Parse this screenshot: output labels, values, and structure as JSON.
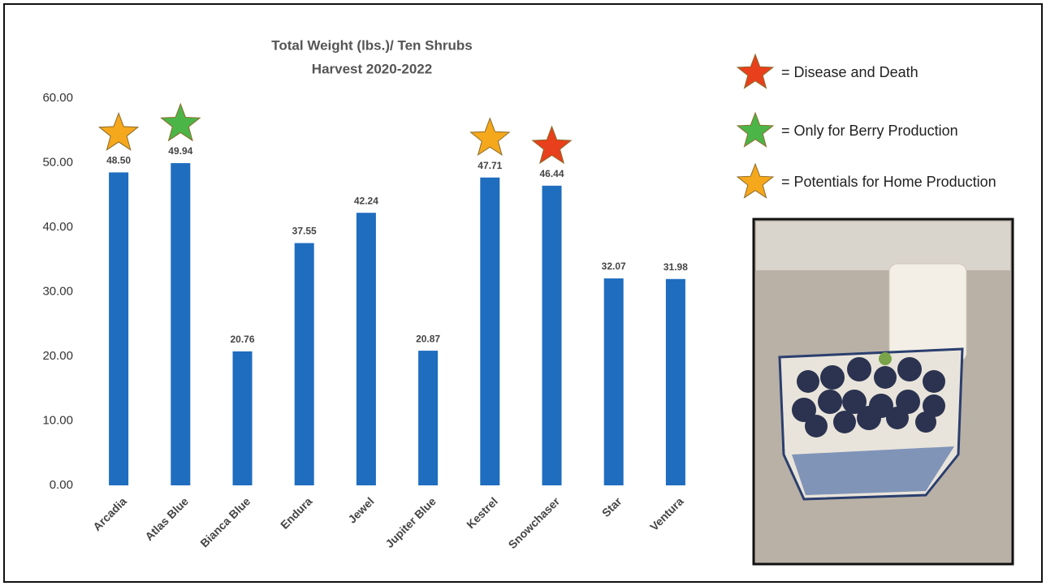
{
  "chart_data": {
    "type": "bar",
    "title": "Total Weight (lbs.)/ Ten Shrubs",
    "subtitle": "Harvest 2020-2022",
    "categories": [
      "Arcadia",
      "Atlas Blue",
      "Bianca Blue",
      "Endura",
      "Jewel",
      "Jupiter Blue",
      "Kestrel",
      "Snowchaser",
      "Star",
      "Ventura"
    ],
    "values": [
      48.5,
      49.94,
      20.76,
      37.55,
      42.24,
      20.87,
      47.71,
      46.44,
      32.07,
      31.98
    ],
    "value_labels": [
      "48.50",
      "49.94",
      "20.76",
      "37.55",
      "42.24",
      "20.87",
      "47.71",
      "46.44",
      "32.07",
      "31.98"
    ],
    "color": "#1f6dbf",
    "star_colors": [
      "#f5a81c",
      "#4cb548",
      null,
      null,
      null,
      null,
      "#f5a81c",
      "#e8401c",
      null,
      null
    ],
    "ylim": [
      0,
      60
    ],
    "yticks": [
      {
        "value": 0,
        "label": "0.00"
      },
      {
        "value": 10,
        "label": "10.00"
      },
      {
        "value": 20,
        "label": "20.00"
      },
      {
        "value": 30,
        "label": "30.00"
      },
      {
        "value": 40,
        "label": "40.00"
      },
      {
        "value": 50,
        "label": "50.00"
      },
      {
        "value": 60,
        "label": "60.00"
      }
    ],
    "grid": false,
    "legend": [
      {
        "label": "= Disease and Death",
        "color": "#e8401c"
      },
      {
        "label": "= Only for Berry Production",
        "color": "#4cb548"
      },
      {
        "label": "= Potentials for Home Production",
        "color": "#f5a81c"
      }
    ]
  }
}
